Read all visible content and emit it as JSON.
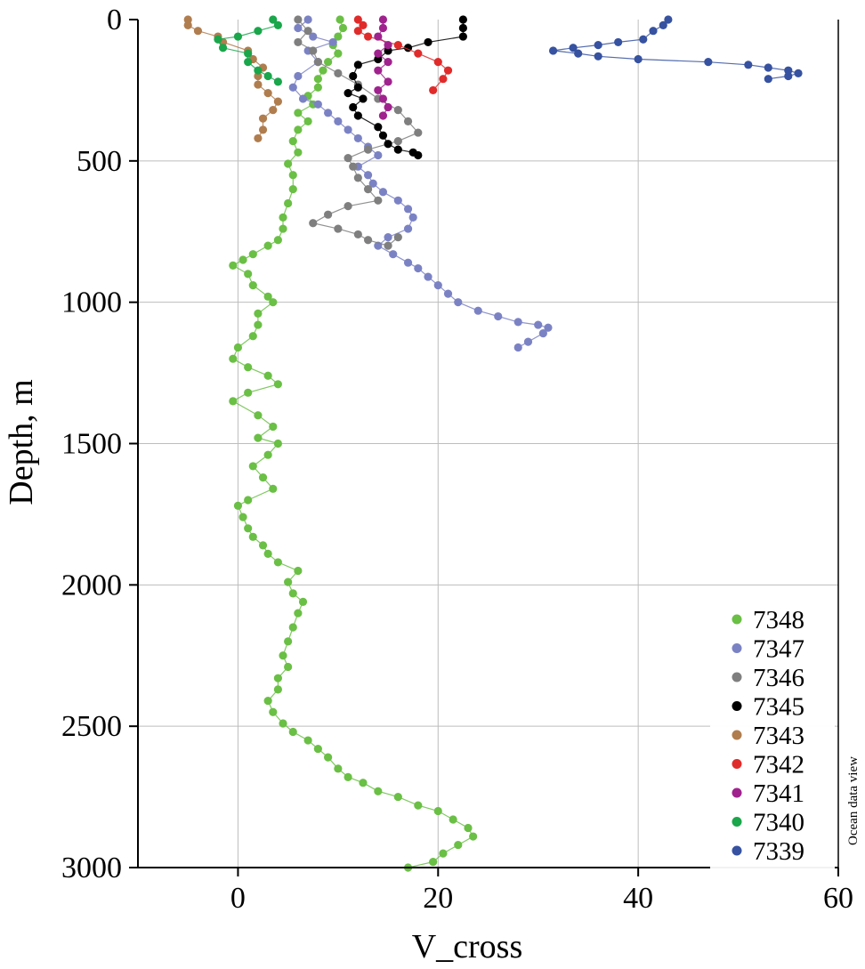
{
  "chart_data": {
    "type": "scatter",
    "title": "",
    "xlabel": "V_cross",
    "ylabel": "Depth, m",
    "xlim": [
      -10,
      60
    ],
    "ylim": [
      0,
      3000
    ],
    "y_inverted": true,
    "xticks": [
      0,
      20,
      40,
      60
    ],
    "yticks": [
      0,
      500,
      1000,
      1500,
      2000,
      2500,
      3000
    ],
    "grid": true,
    "legend_position": "bottom-right",
    "watermark": "Ocean data view",
    "series": [
      {
        "name": "7348",
        "color": "#6abf45",
        "points": [
          [
            10.2,
            0
          ],
          [
            10.5,
            30
          ],
          [
            10,
            60
          ],
          [
            9.5,
            90
          ],
          [
            10,
            120
          ],
          [
            9,
            150
          ],
          [
            8.5,
            180
          ],
          [
            8,
            210
          ],
          [
            8,
            240
          ],
          [
            7,
            270
          ],
          [
            7.5,
            300
          ],
          [
            6,
            330
          ],
          [
            7,
            360
          ],
          [
            6,
            390
          ],
          [
            5.5,
            430
          ],
          [
            6,
            470
          ],
          [
            5,
            510
          ],
          [
            5.5,
            550
          ],
          [
            5.5,
            600
          ],
          [
            5,
            650
          ],
          [
            4.5,
            700
          ],
          [
            4.5,
            740
          ],
          [
            4,
            780
          ],
          [
            3,
            800
          ],
          [
            1.5,
            830
          ],
          [
            0.5,
            850
          ],
          [
            -0.5,
            870
          ],
          [
            1,
            900
          ],
          [
            1.5,
            940
          ],
          [
            3,
            980
          ],
          [
            3.5,
            1000
          ],
          [
            2,
            1040
          ],
          [
            2,
            1080
          ],
          [
            1.5,
            1120
          ],
          [
            0,
            1160
          ],
          [
            -0.5,
            1200
          ],
          [
            1,
            1230
          ],
          [
            3,
            1260
          ],
          [
            4,
            1290
          ],
          [
            1,
            1320
          ],
          [
            -0.5,
            1350
          ],
          [
            2,
            1400
          ],
          [
            3.5,
            1440
          ],
          [
            2,
            1480
          ],
          [
            4,
            1500
          ],
          [
            3,
            1540
          ],
          [
            1.5,
            1580
          ],
          [
            2.5,
            1620
          ],
          [
            3.5,
            1660
          ],
          [
            1,
            1700
          ],
          [
            0,
            1720
          ],
          [
            0.5,
            1760
          ],
          [
            1,
            1800
          ],
          [
            1.5,
            1830
          ],
          [
            2.5,
            1860
          ],
          [
            3,
            1890
          ],
          [
            4,
            1920
          ],
          [
            6,
            1950
          ],
          [
            5,
            1990
          ],
          [
            5.5,
            2030
          ],
          [
            6.5,
            2060
          ],
          [
            6,
            2100
          ],
          [
            5.5,
            2150
          ],
          [
            5,
            2200
          ],
          [
            4.5,
            2250
          ],
          [
            5,
            2290
          ],
          [
            4,
            2330
          ],
          [
            4,
            2370
          ],
          [
            3,
            2410
          ],
          [
            3.5,
            2450
          ],
          [
            4.5,
            2490
          ],
          [
            5.5,
            2520
          ],
          [
            7,
            2550
          ],
          [
            8,
            2580
          ],
          [
            9,
            2610
          ],
          [
            10,
            2650
          ],
          [
            11,
            2680
          ],
          [
            12.5,
            2700
          ],
          [
            14,
            2730
          ],
          [
            16,
            2750
          ],
          [
            18,
            2780
          ],
          [
            20,
            2800
          ],
          [
            21.5,
            2830
          ],
          [
            23,
            2860
          ],
          [
            23.5,
            2890
          ],
          [
            22,
            2920
          ],
          [
            20.5,
            2950
          ],
          [
            19.5,
            2980
          ],
          [
            17,
            3000
          ]
        ]
      },
      {
        "name": "7347",
        "color": "#7b82c4",
        "points": [
          [
            7,
            0
          ],
          [
            6,
            30
          ],
          [
            7.5,
            60
          ],
          [
            9.5,
            80
          ],
          [
            7,
            110
          ],
          [
            8,
            150
          ],
          [
            6,
            200
          ],
          [
            5.5,
            240
          ],
          [
            6.5,
            280
          ],
          [
            8,
            300
          ],
          [
            9,
            330
          ],
          [
            10,
            360
          ],
          [
            11,
            390
          ],
          [
            12,
            420
          ],
          [
            13,
            450
          ],
          [
            14,
            480
          ],
          [
            12,
            520
          ],
          [
            13,
            550
          ],
          [
            13.5,
            580
          ],
          [
            14.5,
            610
          ],
          [
            16,
            640
          ],
          [
            17,
            670
          ],
          [
            17.5,
            700
          ],
          [
            17,
            740
          ],
          [
            15,
            770
          ],
          [
            14,
            800
          ],
          [
            15.5,
            830
          ],
          [
            17,
            860
          ],
          [
            18,
            880
          ],
          [
            19,
            910
          ],
          [
            20,
            940
          ],
          [
            21,
            970
          ],
          [
            22,
            1000
          ],
          [
            24,
            1030
          ],
          [
            26,
            1050
          ],
          [
            28,
            1070
          ],
          [
            30,
            1080
          ],
          [
            31,
            1090
          ],
          [
            30.5,
            1110
          ],
          [
            29,
            1140
          ],
          [
            28,
            1160
          ]
        ]
      },
      {
        "name": "7346",
        "color": "#7f7f7f",
        "points": [
          [
            6,
            0
          ],
          [
            7,
            40
          ],
          [
            6,
            80
          ],
          [
            7.5,
            110
          ],
          [
            8,
            150
          ],
          [
            10,
            190
          ],
          [
            12,
            230
          ],
          [
            14,
            280
          ],
          [
            16,
            320
          ],
          [
            17,
            360
          ],
          [
            18,
            400
          ],
          [
            16,
            430
          ],
          [
            13,
            460
          ],
          [
            11,
            490
          ],
          [
            11.5,
            520
          ],
          [
            12,
            560
          ],
          [
            13,
            600
          ],
          [
            14,
            640
          ],
          [
            11,
            660
          ],
          [
            9,
            690
          ],
          [
            7.5,
            720
          ],
          [
            10,
            740
          ],
          [
            12,
            760
          ],
          [
            13,
            780
          ],
          [
            15,
            800
          ],
          [
            16,
            770
          ]
        ]
      },
      {
        "name": "7345",
        "color": "#000000",
        "points": [
          [
            22.5,
            0
          ],
          [
            22.5,
            30
          ],
          [
            22.5,
            60
          ],
          [
            19,
            80
          ],
          [
            17,
            100
          ],
          [
            15,
            110
          ],
          [
            14,
            140
          ],
          [
            12,
            160
          ],
          [
            11.5,
            200
          ],
          [
            12,
            240
          ],
          [
            11,
            260
          ],
          [
            12.5,
            280
          ],
          [
            11.5,
            310
          ],
          [
            12,
            340
          ],
          [
            14,
            380
          ],
          [
            14.5,
            410
          ],
          [
            15,
            440
          ],
          [
            16,
            460
          ],
          [
            17.5,
            470
          ],
          [
            18,
            480
          ]
        ]
      },
      {
        "name": "7343",
        "color": "#b07d4f",
        "points": [
          [
            -5,
            0
          ],
          [
            -5,
            20
          ],
          [
            -4,
            40
          ],
          [
            -2,
            60
          ],
          [
            -1.5,
            80
          ],
          [
            1,
            110
          ],
          [
            1.5,
            140
          ],
          [
            2.5,
            170
          ],
          [
            2,
            200
          ],
          [
            2,
            230
          ],
          [
            3,
            260
          ],
          [
            4,
            290
          ],
          [
            3.5,
            320
          ],
          [
            2.5,
            350
          ],
          [
            2.5,
            390
          ],
          [
            2,
            420
          ]
        ]
      },
      {
        "name": "7342",
        "color": "#e02b2b",
        "points": [
          [
            12,
            0
          ],
          [
            12.5,
            20
          ],
          [
            12,
            40
          ],
          [
            13,
            60
          ],
          [
            16,
            90
          ],
          [
            18,
            120
          ],
          [
            20,
            150
          ],
          [
            21,
            180
          ],
          [
            20.5,
            210
          ],
          [
            19.5,
            250
          ]
        ]
      },
      {
        "name": "7341",
        "color": "#a0228e",
        "points": [
          [
            14.5,
            0
          ],
          [
            14.5,
            30
          ],
          [
            14,
            60
          ],
          [
            15,
            90
          ],
          [
            14,
            120
          ],
          [
            15,
            150
          ],
          [
            14,
            180
          ],
          [
            15,
            220
          ],
          [
            14,
            250
          ],
          [
            14.5,
            280
          ],
          [
            15,
            310
          ],
          [
            14.5,
            340
          ]
        ]
      },
      {
        "name": "7340",
        "color": "#1aa64b",
        "points": [
          [
            3.5,
            0
          ],
          [
            4,
            20
          ],
          [
            2,
            40
          ],
          [
            0,
            60
          ],
          [
            -2,
            70
          ],
          [
            -1.5,
            100
          ],
          [
            1,
            120
          ],
          [
            1,
            150
          ],
          [
            2,
            180
          ],
          [
            3,
            200
          ],
          [
            4,
            220
          ]
        ]
      },
      {
        "name": "7339",
        "color": "#3652a0",
        "points": [
          [
            43,
            0
          ],
          [
            42.5,
            20
          ],
          [
            41.5,
            40
          ],
          [
            40.5,
            70
          ],
          [
            38,
            80
          ],
          [
            36,
            90
          ],
          [
            33.5,
            100
          ],
          [
            31.5,
            110
          ],
          [
            34,
            120
          ],
          [
            36,
            130
          ],
          [
            40,
            140
          ],
          [
            47,
            150
          ],
          [
            51,
            160
          ],
          [
            53,
            170
          ],
          [
            55,
            180
          ],
          [
            56,
            190
          ],
          [
            55,
            200
          ],
          [
            53,
            210
          ]
        ]
      }
    ]
  }
}
